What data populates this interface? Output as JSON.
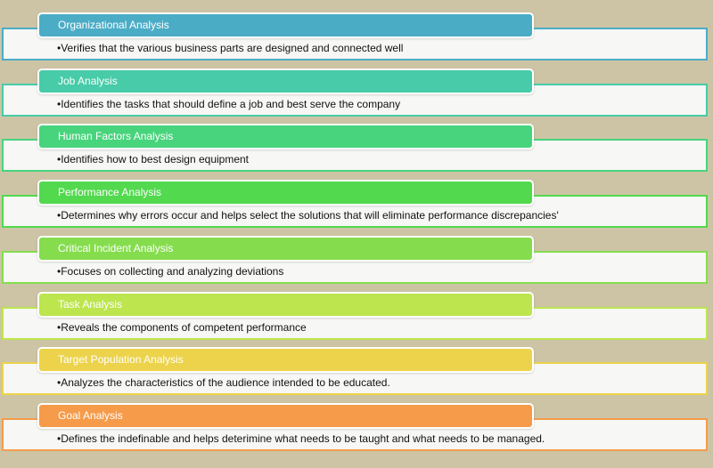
{
  "items": [
    {
      "title": "Organizational Analysis",
      "text": "•Verifies that the various business parts are designed and connected well",
      "color": "#4bacc6"
    },
    {
      "title": "Job Analysis",
      "text": "•Identifies the tasks that should define a job and best serve the company",
      "color": "#47cba8"
    },
    {
      "title": "Human Factors Analysis",
      "text": "•Identifies how to best design equipment",
      "color": "#48d47c"
    },
    {
      "title": "Performance Analysis",
      "text": "•Determines why errors occur and helps select the solutions that will eliminate performance discrepancies'",
      "color": "#52d94e"
    },
    {
      "title": "Critical Incident Analysis",
      "text": "•Focuses on collecting and analyzing deviations",
      "color": "#85dd4e"
    },
    {
      "title": "Task Analysis",
      "text": "•Reveals the components of competent performance",
      "color": "#bde54e"
    },
    {
      "title": "Target Population Analysis",
      "text": "•Analyzes the characteristics of the audience intended to be educated.",
      "color": "#ecd34b"
    },
    {
      "title": "Goal Analysis",
      "text": "•Defines the indefinable and helps deterimine what needs to be taught and what needs to be managed.",
      "color": "#f59b4a"
    }
  ]
}
